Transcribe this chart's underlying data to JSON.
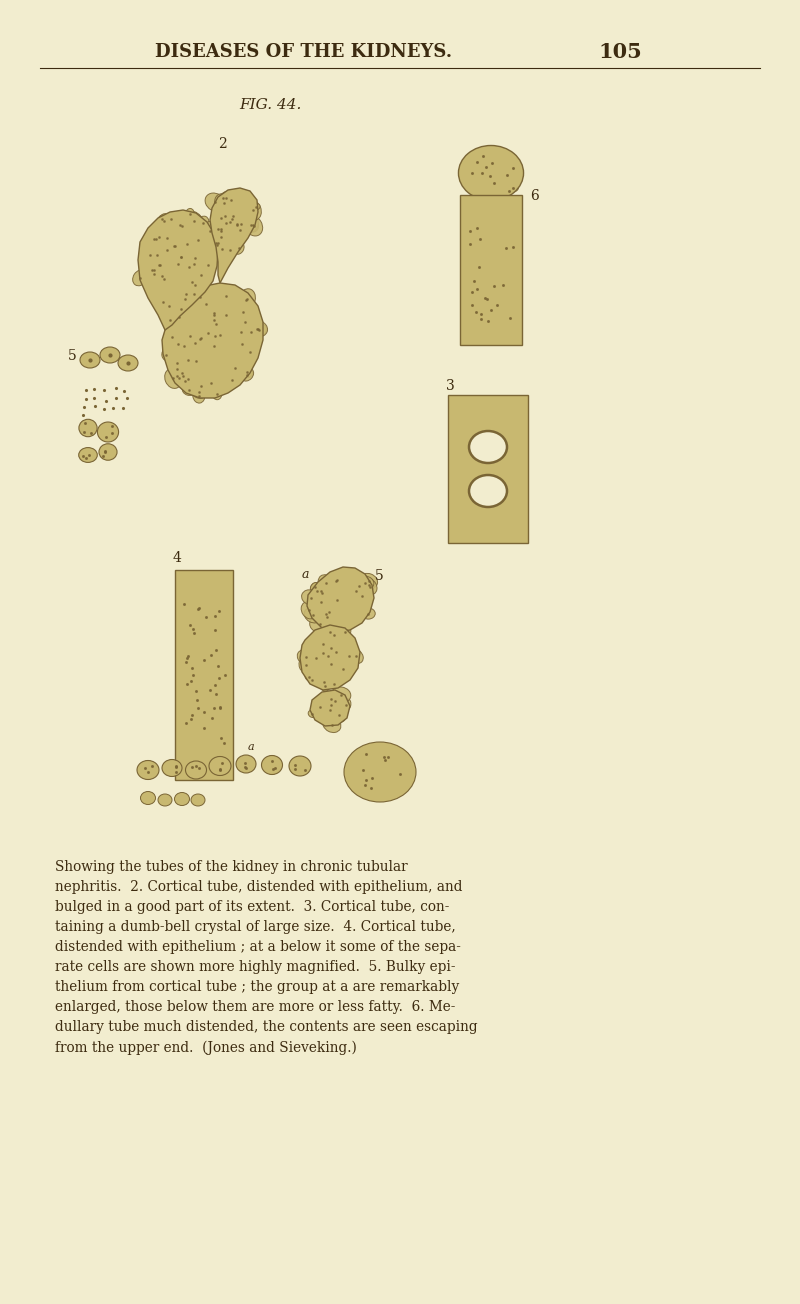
{
  "page_bg": "#f2edcf",
  "header_text": "DISEASES OF THE KIDNEYS.",
  "page_number": "105",
  "fig_caption": "FIG. 44.",
  "header_color": "#3d2b10",
  "body_text_color": "#3d2b10",
  "caption_text": "Showing the tubes of the kidney in chronic tubular\nnephritis.  2. Cortical tube, distended with epithelium, and\nbulged in a good part of its extent.  3. Cortical tube, con-\ntaining a dumb-bell crystal of large size.  4. Cortical tube,\ndistended with epithelium ; at a below it some of the sepa-\nrate cells are shown more highly magnified.  5. Bulky epi-\nthelium from cortical tube ; the group at a are remarkably\nenlarged, those below them are more or less fatty.  6. Me-\ndullary tube much distended, the contents are seen escaping\nfrom the upper end.  (Jones and Sieveking.)",
  "draw_color": "#7a6535",
  "cell_fill": "#c8b870",
  "cell_fill2": "#b8a860"
}
